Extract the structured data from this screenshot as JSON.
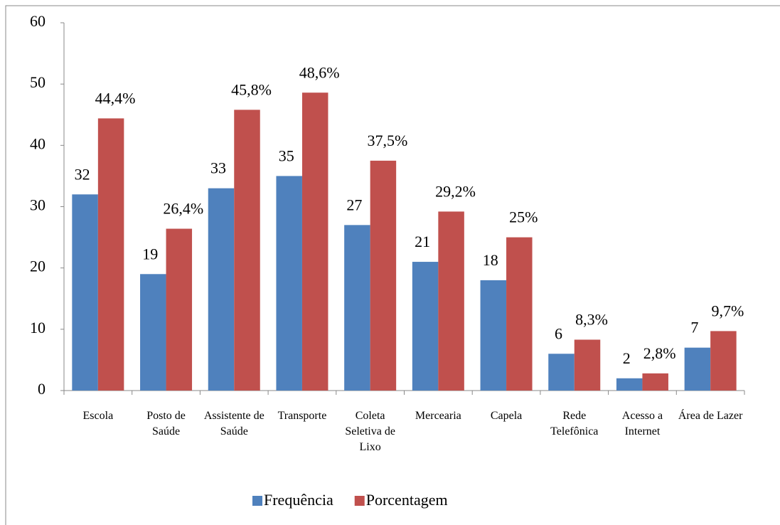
{
  "chart_data": {
    "type": "bar",
    "categories": [
      "Escola",
      "Posto de Saúde",
      "Assistente de Saúde",
      "Transporte",
      "Coleta Seletiva de Lixo",
      "Mercearia",
      "Capela",
      "Rede Telefônica",
      "Acesso a Internet",
      "Área de Lazer"
    ],
    "series": [
      {
        "name": "Frequência",
        "color": "#4f81bd",
        "values": [
          32,
          19,
          33,
          35,
          27,
          21,
          18,
          6,
          2,
          7
        ]
      },
      {
        "name": "Porcentagem",
        "color": "#c0504d",
        "values": [
          44.4,
          26.4,
          45.8,
          48.6,
          37.5,
          29.2,
          25,
          8.3,
          2.8,
          9.7
        ],
        "value_labels": [
          "44,4%",
          "26,4%",
          "45,8%",
          "48,6%",
          "37,5%",
          "29,2%",
          "25%",
          "8,3%",
          "2,8%",
          "9,7%"
        ]
      }
    ],
    "ylim": [
      0,
      60
    ],
    "yticks": [
      0,
      10,
      20,
      30,
      40,
      50,
      60
    ],
    "grid": false,
    "legend": "bottom"
  }
}
